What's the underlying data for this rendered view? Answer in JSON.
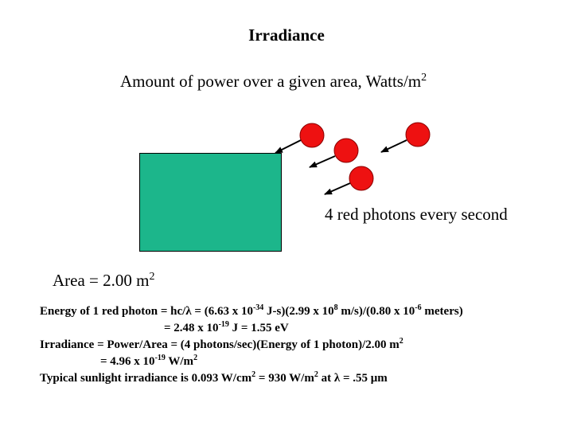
{
  "title": "Irradiance",
  "subtitle": {
    "text": "Amount of power over a given area, Watts/m",
    "sup": "2"
  },
  "colors": {
    "area_fill": "#1cb68b",
    "photon_fill": "#ee1111",
    "photon_stroke": "#8a0000",
    "arrow": "#000000"
  },
  "photon_caption": "4 red photons every second",
  "area_label": {
    "text": "Area = 2.00 m",
    "sup": "2"
  },
  "calc": {
    "l1": {
      "a": "Energy of 1 red photon = hc/",
      "lambda": "λ",
      "b": " = (6.63 x 10",
      "e1": "-34",
      "c": " J-s)(2.99 x 10",
      "e2": "8",
      "d": " m/s)/(0.80 x 10",
      "e3": "-6",
      "e": " meters)"
    },
    "l2": {
      "a": "= 2.48 x 10",
      "e1": "-19",
      "b": " J = 1.55 eV"
    },
    "l3": {
      "a": "Irradiance = Power/Area = (4 photons/sec)(Energy of 1 photon)/2.00 m",
      "e1": "2"
    },
    "l4": {
      "a": "= 4.96 x 10",
      "e1": "-19",
      "b": " W/m",
      "e2": "2"
    },
    "l5": {
      "a": "Typical sunlight irradiance is 0.093 W/cm",
      "e1": "2",
      "b": " = 930 W/m",
      "e2": "2",
      "c": " at ",
      "lambda": "λ",
      "d": " = .55 ",
      "mu": "μ",
      "e": "m"
    }
  }
}
